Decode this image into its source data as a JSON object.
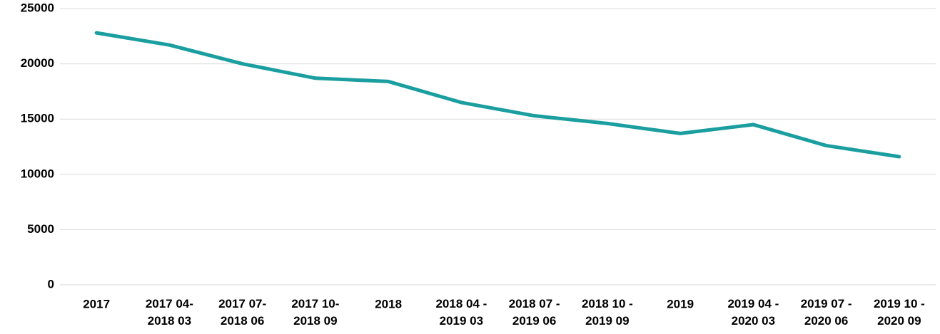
{
  "chart_data": {
    "type": "line",
    "categories": [
      "2017",
      "2017 04-\n2018 03",
      "2017 07-\n2018 06",
      "2017 10-\n2018 09",
      "2018",
      "2018 04 -\n2019 03",
      "2018 07 -\n2019 06",
      "2018 10 -\n2019 09",
      "2019",
      "2019 04 -\n2020 03",
      "2019 07 -\n2020 06",
      "2019 10 -\n2020 09"
    ],
    "values": [
      22800,
      21700,
      20000,
      18700,
      18400,
      16500,
      15300,
      14600,
      13700,
      14500,
      12600,
      11600
    ],
    "color": "#1b9e9f",
    "ylim": [
      0,
      25000
    ],
    "yticks": [
      0,
      5000,
      10000,
      15000,
      20000,
      25000
    ],
    "grid": true
  }
}
